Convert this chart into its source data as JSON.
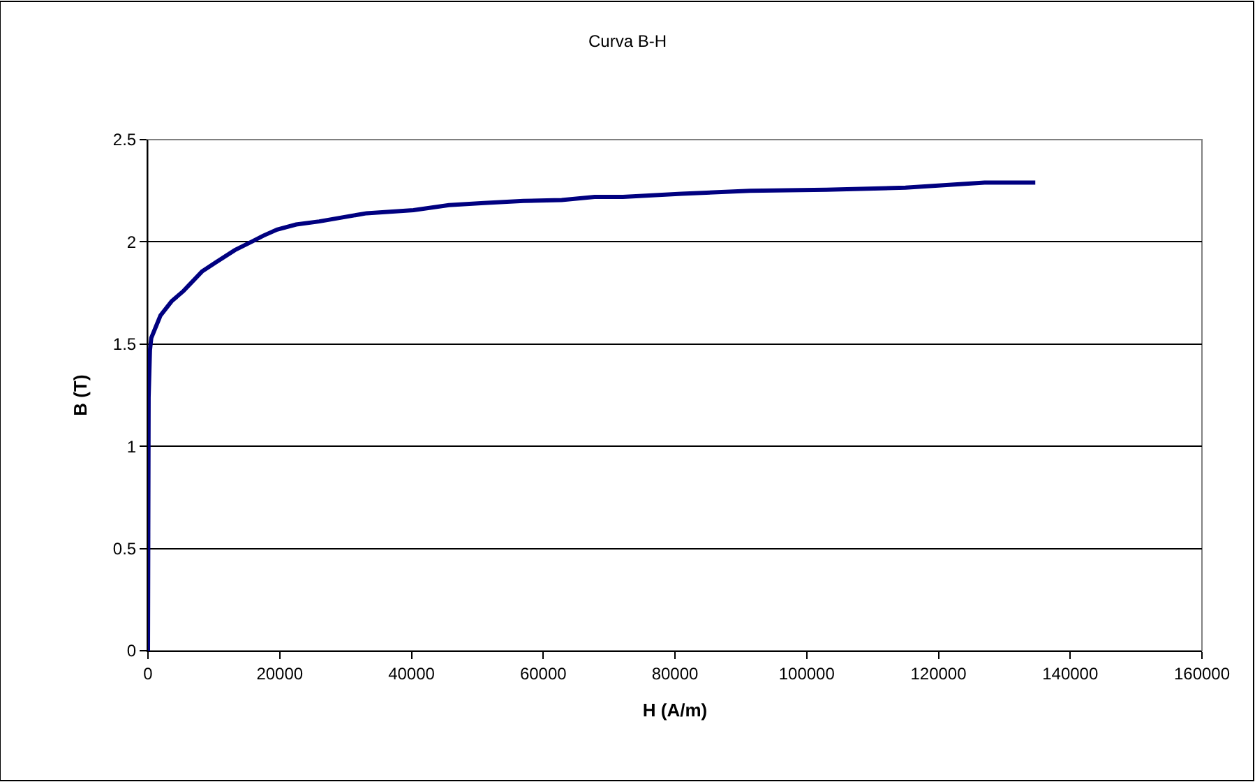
{
  "chart_data": {
    "type": "line",
    "title": "Curva B-H",
    "xlabel": "H (A/m)",
    "ylabel": "B (T)",
    "x": [
      0,
      100,
      300,
      500,
      1900,
      3600,
      5400,
      8200,
      10300,
      13200,
      15700,
      17500,
      19600,
      22500,
      26000,
      33200,
      40300,
      45700,
      51000,
      57000,
      62800,
      67800,
      72100,
      81000,
      91400,
      103000,
      115000,
      127000,
      134700
    ],
    "series": [
      {
        "color": "#000080",
        "values": [
          0,
          1.24,
          1.47,
          1.53,
          1.64,
          1.71,
          1.76,
          1.855,
          1.9,
          1.96,
          2.0,
          2.03,
          2.06,
          2.085,
          2.1,
          2.14,
          2.155,
          2.18,
          2.19,
          2.2,
          2.205,
          2.22,
          2.22,
          2.235,
          2.25,
          2.255,
          2.265,
          2.29,
          2.29
        ]
      }
    ],
    "xlim": [
      0,
      160000
    ],
    "xticks": [
      0,
      20000,
      40000,
      60000,
      80000,
      100000,
      120000,
      140000,
      160000
    ],
    "ylim": [
      0,
      2.5
    ],
    "yticks": [
      0,
      0.5,
      1,
      1.5,
      2,
      2.5
    ],
    "grid": "y",
    "legend": false,
    "marker": "none",
    "line_style": "solid"
  }
}
